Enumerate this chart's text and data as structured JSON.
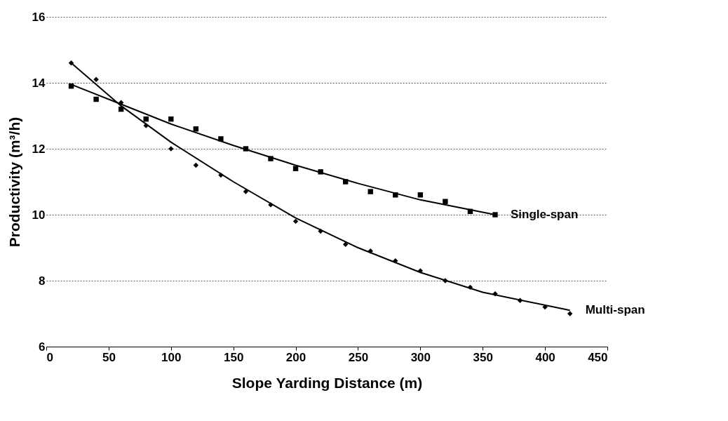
{
  "chart_data": {
    "type": "scatter",
    "xlabel": "Slope Yarding Distance (m)",
    "ylabel": "Productivity (m³/h)",
    "xlim": [
      0,
      450
    ],
    "xticks": [
      0,
      50,
      100,
      150,
      200,
      250,
      300,
      350,
      400,
      450
    ],
    "ylim": [
      6,
      16
    ],
    "yticks": [
      6,
      8,
      10,
      12,
      14,
      16
    ],
    "grid": "y",
    "series": [
      {
        "marker": "square",
        "color": "#000000",
        "x": [
          20,
          40,
          60,
          80,
          100,
          120,
          140,
          160,
          180,
          200,
          220,
          240,
          260,
          280,
          300,
          320,
          340,
          360
        ],
        "values": [
          13.9,
          13.5,
          13.2,
          12.9,
          12.9,
          12.6,
          12.3,
          12.0,
          11.7,
          11.4,
          11.3,
          11.0,
          10.7,
          10.6,
          10.6,
          10.4,
          10.1,
          10.0
        ]
      },
      {
        "marker": "diamond",
        "color": "#000000",
        "x": [
          20,
          40,
          60,
          80,
          100,
          120,
          140,
          160,
          180,
          200,
          220,
          240,
          260,
          280,
          300,
          320,
          340,
          360,
          380,
          400,
          420
        ],
        "values": [
          14.6,
          14.1,
          13.4,
          12.7,
          12.0,
          11.5,
          11.2,
          10.7,
          10.3,
          9.8,
          9.5,
          9.1,
          8.9,
          8.6,
          8.3,
          8.0,
          7.8,
          7.6,
          7.4,
          7.2,
          7.0
        ]
      },
      {
        "type": "line",
        "name": "Single-span",
        "line_style": "solid",
        "color": "#000000",
        "x": [
          20,
          60,
          100,
          150,
          200,
          250,
          300,
          360
        ],
        "values": [
          13.95,
          13.35,
          12.75,
          12.1,
          11.5,
          10.95,
          10.45,
          10.0
        ]
      },
      {
        "type": "line",
        "name": "Multi-span",
        "line_style": "solid",
        "color": "#000000",
        "x": [
          20,
          60,
          100,
          150,
          200,
          250,
          300,
          350,
          420
        ],
        "values": [
          14.6,
          13.3,
          12.2,
          11.0,
          9.9,
          9.0,
          8.25,
          7.65,
          7.1
        ]
      }
    ]
  }
}
